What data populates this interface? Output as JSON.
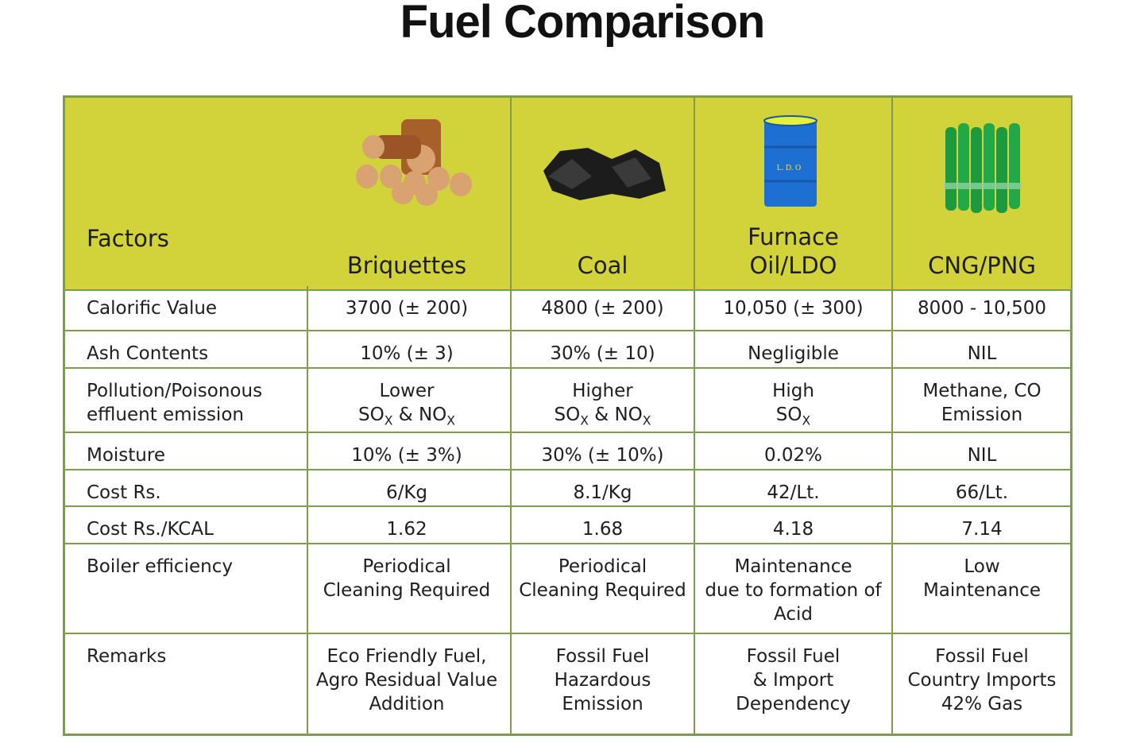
{
  "title": "Fuel Comparison",
  "table": {
    "header": [
      [
        "Factors"
      ],
      [
        "Briquettes"
      ],
      [
        "Coal"
      ],
      [
        "Furnace",
        "Oil/LDO"
      ],
      [
        "CNG/PNG"
      ]
    ],
    "rows": [
      [
        [
          "Calorific Value"
        ],
        [
          "3700 (± 200)"
        ],
        [
          "4800 (± 200)"
        ],
        [
          "10,050 (± 300)"
        ],
        [
          "8000 - 10,500"
        ]
      ],
      [
        [
          "Ash Contents"
        ],
        [
          "10% (± 3)"
        ],
        [
          "30% (± 10)"
        ],
        [
          "Negligible"
        ],
        [
          "NIL"
        ]
      ],
      [
        [
          "Pollution/Poisonous",
          "effluent emission"
        ],
        [
          "Lower",
          [
            "SO",
            {
              "sub": "X"
            },
            " & NO",
            {
              "sub": "X"
            }
          ]
        ],
        [
          "Higher",
          [
            "SO",
            {
              "sub": "X"
            },
            " & NO",
            {
              "sub": "X"
            }
          ]
        ],
        [
          "High",
          [
            "SO",
            {
              "sub": "X"
            }
          ]
        ],
        [
          "Methane, CO",
          "Emission"
        ]
      ],
      [
        [
          "Moisture"
        ],
        [
          "10% (± 3%)"
        ],
        [
          "30% (± 10%)"
        ],
        [
          "0.02%"
        ],
        [
          "NIL"
        ]
      ],
      [
        [
          "Cost Rs."
        ],
        [
          "6/Kg"
        ],
        [
          "8.1/Kg"
        ],
        [
          "42/Lt."
        ],
        [
          "66/Lt."
        ]
      ],
      [
        [
          "Cost Rs./KCAL"
        ],
        [
          "1.62"
        ],
        [
          "1.68"
        ],
        [
          "4.18"
        ],
        [
          "7.14"
        ]
      ],
      [
        [
          "Boiler efficiency"
        ],
        [
          "Periodical",
          "Cleaning Required"
        ],
        [
          "Periodical",
          "Cleaning Required"
        ],
        [
          "Maintenance",
          "due to formation of",
          "Acid"
        ],
        [
          "Low",
          "Maintenance"
        ]
      ],
      [
        [
          "Remarks"
        ],
        [
          "Eco Friendly Fuel,",
          "Agro Residual Value",
          "Addition"
        ],
        [
          "Fossil Fuel",
          "Hazardous",
          "Emission"
        ],
        [
          "Fossil Fuel",
          "& Import",
          "Dependency"
        ],
        [
          "Fossil Fuel",
          "Country Imports",
          "42% Gas"
        ]
      ]
    ]
  }
}
